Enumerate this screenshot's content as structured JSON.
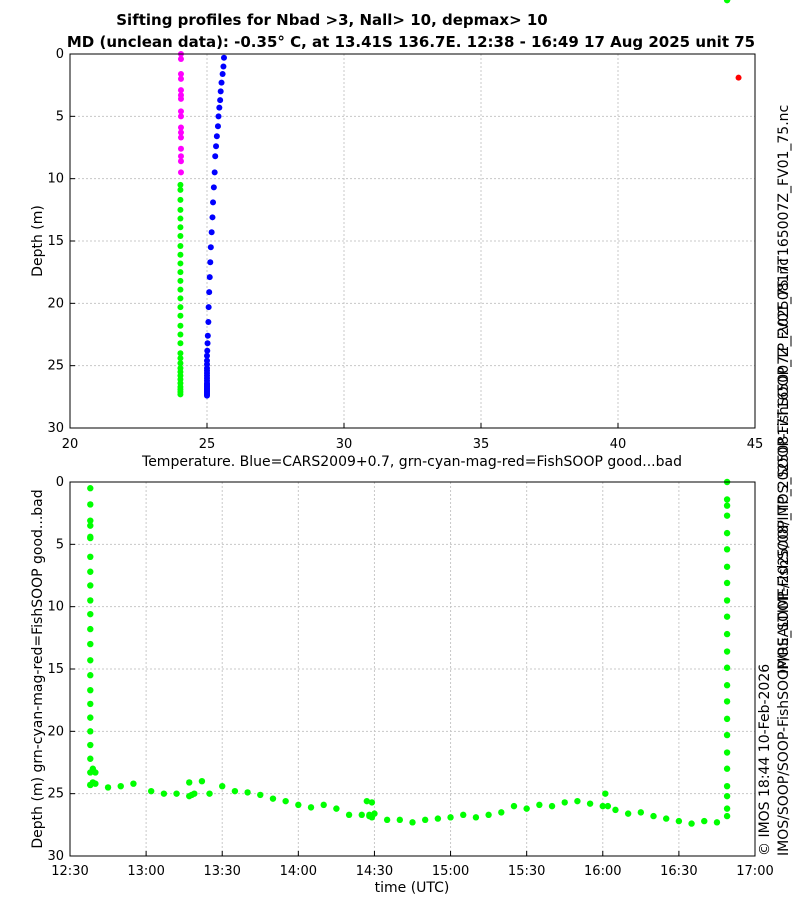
{
  "figure": {
    "title_line1": "Sifting profiles for Nbad >3, Nall> 10, depmax> 10",
    "title_line2": "MD (unclean data): -0.35° C, at 13.41S 136.7E. 12:38 - 16:49 17 Aug 2025 unit 75",
    "side_text_1": "IMOS_SOOP-FishSOOP_TP_20250817T165007Z_FV01_75.nc",
    "side_text_2a": "© IMOS 18:44 10-Feb-2026",
    "side_text_2b": "IMOS/SOOP/SOOP-FishSOOP/REALTIME/2025/08/IMOS_SOOP-FishSOOP_TP_20250817T165007Z_FV01_75.nc",
    "colors": {
      "good": "#00ff00",
      "cyan": "#00ffff",
      "magenta": "#ff00ff",
      "bad": "#ff0000",
      "cars": "#0000ff"
    }
  },
  "chart_data": [
    {
      "type": "scatter",
      "xlabel": "Temperature. Blue=CARS2009+0.7, grn-cyan-mag-red=FishSOOP good...bad",
      "ylabel": "Depth (m)",
      "xlim": [
        20,
        45
      ],
      "ylim": [
        30,
        0
      ],
      "xticks": [
        20,
        25,
        30,
        35,
        40,
        45
      ],
      "xtick_labels": [
        "20",
        "25",
        "30",
        "35",
        "40",
        "45"
      ],
      "yticks": [
        0,
        5,
        10,
        15,
        20,
        25,
        30
      ],
      "ytick_labels": [
        "0",
        "5",
        "10",
        "15",
        "20",
        "25",
        "30"
      ],
      "grid": true,
      "series": [
        {
          "color": "#ff00ff",
          "temp": 24.05,
          "depths": [
            0.0,
            0.4,
            1.6,
            2.0,
            2.9,
            3.3,
            3.6,
            4.6,
            5.0,
            5.9,
            6.3,
            6.7,
            7.6,
            8.2,
            8.6,
            9.5
          ]
        },
        {
          "color": "#00ff00",
          "temp": 24.03,
          "depths": [
            10.5,
            10.9,
            11.7,
            12.5,
            13.2,
            13.9,
            14.6,
            15.4,
            16.1,
            16.8,
            17.5,
            18.2,
            18.9,
            19.6,
            20.3,
            21.0,
            21.8,
            22.5,
            23.2,
            24.0,
            24.4,
            24.8,
            25.2,
            25.5,
            25.8,
            26.1,
            26.4,
            26.7,
            26.9,
            27.1,
            27.3
          ]
        },
        {
          "color": "#0000ff",
          "x": [
            25.62,
            25.6,
            25.57,
            25.53,
            25.5,
            25.48,
            25.45,
            25.42,
            25.4,
            25.36,
            25.33,
            25.3,
            25.28,
            25.25,
            25.22,
            25.2,
            25.17,
            25.14,
            25.12,
            25.1,
            25.08,
            25.06,
            25.05,
            25.03,
            25.02,
            25.01,
            25.0,
            25.0,
            25.0,
            25.0,
            25.0,
            25.0,
            25.0,
            25.0,
            25.0,
            25.0,
            25.0,
            25.0,
            25.0,
            25.0,
            25.0,
            25.0,
            25.0,
            25.0,
            25.0,
            25.0
          ],
          "y": [
            0.3,
            1.0,
            1.6,
            2.3,
            3.0,
            3.7,
            4.3,
            5.0,
            5.8,
            6.6,
            7.4,
            8.2,
            9.5,
            10.7,
            11.9,
            13.1,
            14.3,
            15.5,
            16.7,
            17.9,
            19.1,
            20.3,
            21.5,
            22.6,
            23.2,
            23.8,
            24.2,
            24.6,
            24.9,
            25.2,
            25.4,
            25.6,
            25.8,
            26.0,
            26.2,
            26.4,
            26.5,
            26.6,
            26.7,
            26.8,
            26.9,
            27.0,
            27.1,
            27.2,
            27.3,
            27.4
          ]
        },
        {
          "color": "#ff0000",
          "x": [
            44.4
          ],
          "y": [
            1.9
          ]
        }
      ]
    },
    {
      "type": "scatter",
      "xlabel": "time (UTC)",
      "ylabel": "Depth (m) grn-cyan-mag-red=FishSOOP good...bad",
      "xlim": [
        "12:30",
        "17:00"
      ],
      "ylim": [
        30,
        0
      ],
      "xticks": [
        "12:30",
        "13:00",
        "13:30",
        "14:00",
        "14:30",
        "15:00",
        "15:30",
        "16:00",
        "16:30",
        "17:00"
      ],
      "yticks": [
        0,
        5,
        10,
        15,
        20,
        25,
        30
      ],
      "ytick_labels": [
        "0",
        "5",
        "10",
        "15",
        "20",
        "25",
        "30"
      ],
      "grid": true,
      "series": [
        {
          "color": "#00ff00",
          "times": [
            "12:38",
            "12:38",
            "12:38",
            "12:38",
            "12:38",
            "12:38",
            "12:38",
            "12:38",
            "12:38",
            "12:38",
            "12:38",
            "12:38",
            "12:38",
            "12:38",
            "12:38",
            "12:38",
            "12:38",
            "12:38",
            "12:38",
            "12:38",
            "12:38",
            "12:38",
            "12:38",
            "12:38",
            "12:39",
            "12:39",
            "12:40",
            "12:40",
            "12:45",
            "12:50",
            "12:55",
            "13:02",
            "13:07",
            "13:12",
            "13:17",
            "13:17",
            "13:18",
            "13:19",
            "13:22",
            "13:25",
            "13:30",
            "13:35",
            "13:40",
            "13:45",
            "13:50",
            "13:55",
            "14:00",
            "14:05",
            "14:10",
            "14:15",
            "14:20",
            "14:25",
            "14:27",
            "14:28",
            "14:28",
            "14:29",
            "14:29",
            "14:30",
            "14:35",
            "14:40",
            "14:45",
            "14:50",
            "14:55",
            "15:00",
            "15:05",
            "15:10",
            "15:15",
            "15:20",
            "15:25",
            "15:30",
            "15:35",
            "15:40",
            "15:45",
            "15:50",
            "15:55",
            "16:00",
            "16:01",
            "16:02",
            "16:05",
            "16:10",
            "16:15",
            "16:20",
            "16:25",
            "16:30",
            "16:35",
            "16:40",
            "16:45",
            "16:49",
            "16:49",
            "16:49",
            "16:49",
            "16:49",
            "16:49",
            "16:49",
            "16:49",
            "16:49",
            "16:49",
            "16:49",
            "16:49",
            "16:49",
            "16:49",
            "16:49",
            "16:49",
            "16:49",
            "16:49",
            "16:49",
            "16:49",
            "16:49",
            "16:49",
            "16:49",
            "16:49",
            "16:49"
          ],
          "depths": [
            0.5,
            1.8,
            3.1,
            3.5,
            4.4,
            4.5,
            6.0,
            7.2,
            8.3,
            9.5,
            10.6,
            11.8,
            13.0,
            14.3,
            15.5,
            16.7,
            17.8,
            18.9,
            20.0,
            21.1,
            22.2,
            23.3,
            24.3,
            24.3,
            24.1,
            23.0,
            23.3,
            24.2,
            24.5,
            24.4,
            24.2,
            24.8,
            25.0,
            25.0,
            24.1,
            25.2,
            25.1,
            25.0,
            24.0,
            25.0,
            24.4,
            24.8,
            24.9,
            25.1,
            25.4,
            25.6,
            25.9,
            26.1,
            25.9,
            26.2,
            26.7,
            26.7,
            25.6,
            26.8,
            26.7,
            25.7,
            26.9,
            26.6,
            27.1,
            27.1,
            27.3,
            27.1,
            27.0,
            26.9,
            26.7,
            26.9,
            26.7,
            26.5,
            26.0,
            26.2,
            25.9,
            26.0,
            25.7,
            25.6,
            25.8,
            26.0,
            25.0,
            26.0,
            26.3,
            26.6,
            26.5,
            26.8,
            27.0,
            27.2,
            27.4,
            27.2,
            27.3,
            0.0,
            1.4,
            1.9,
            2.7,
            4.1,
            5.4,
            6.8,
            8.1,
            9.5,
            10.8,
            12.2,
            13.6,
            14.9,
            16.3,
            17.6,
            19.0,
            20.3,
            21.7,
            23.0,
            24.4,
            25.2,
            26.2,
            26.8
          ]
        }
      ]
    }
  ]
}
